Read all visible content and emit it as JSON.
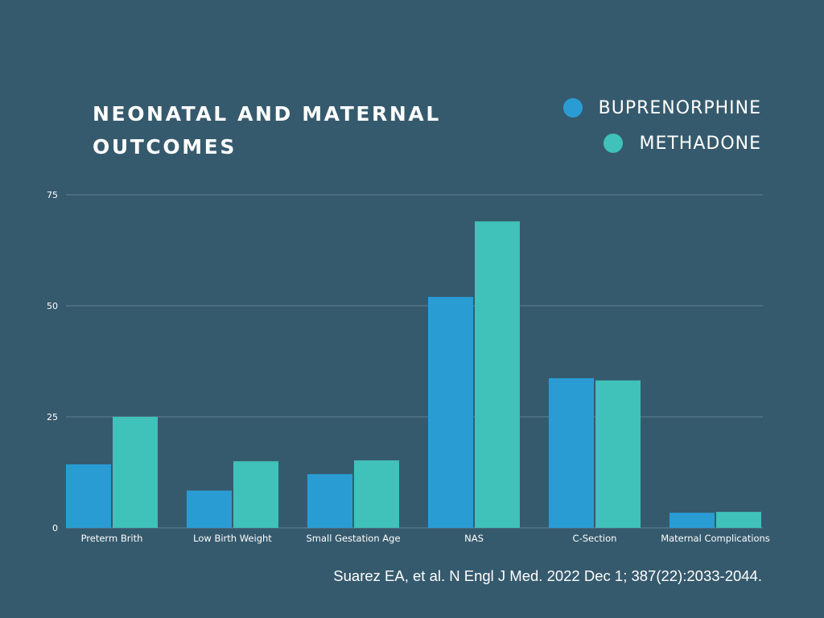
{
  "chart_data": {
    "type": "bar",
    "title": "NEONATAL AND MATERNAL OUTCOMES",
    "categories": [
      "Preterm Brith",
      "Low Birth Weight",
      "Small Gestation Age",
      "NAS",
      "C-Section",
      "Maternal Complications"
    ],
    "series": [
      {
        "name": "BUPRENORPHINE",
        "color": "#2a9cd4",
        "values": [
          14.3,
          8.4,
          12.1,
          52.0,
          33.7,
          3.4
        ]
      },
      {
        "name": "METHADONE",
        "color": "#40c1b9",
        "values": [
          25.0,
          15.0,
          15.2,
          69.0,
          33.2,
          3.6
        ]
      }
    ],
    "yticks": [
      0,
      25,
      50,
      75
    ],
    "ylim": [
      0,
      75
    ],
    "xlabel": "",
    "ylabel": "",
    "grid": true,
    "legend_position": "top-right"
  },
  "citation": "Suarez EA, et al. N Engl J Med. 2022 Dec 1; 387(22):2033-2044.",
  "colors": {
    "background": "#365a6d",
    "gridline": "#5f8294",
    "buprenorphine": "#2a9cd4",
    "methadone": "#40c1b9"
  }
}
